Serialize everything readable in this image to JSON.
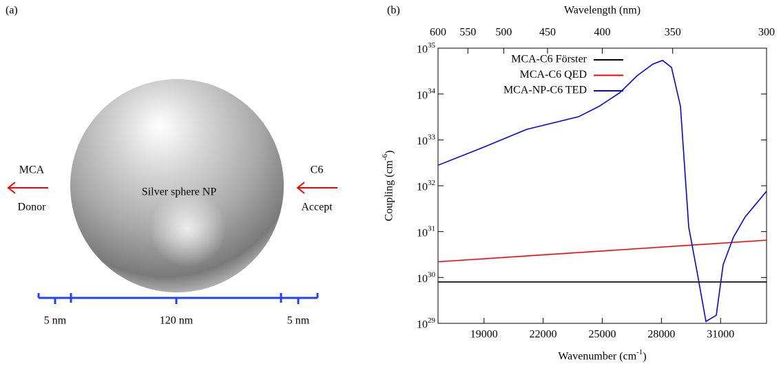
{
  "panel_a": {
    "label": "(a)",
    "donor_name": "MCA",
    "donor_role": "Donor",
    "acceptor_name": "C6",
    "acceptor_role": "Accept",
    "sphere_label": "Silver sphere NP",
    "gap_left": "5 nm",
    "diameter": "120 nm",
    "gap_right": "5 nm"
  },
  "chart_data": {
    "type": "line",
    "panel_label": "(b)",
    "xlabel": "Wavenumber (cm^{-1})",
    "ylabel": "Coupling (cm^{-6})",
    "x2label": "Wavelength (nm)",
    "xlim": [
      16667,
      33333
    ],
    "xticks": [
      19000,
      22000,
      25000,
      28000,
      31000
    ],
    "x2ticks": [
      {
        "value": 16667,
        "label": "600"
      },
      {
        "value": 18182,
        "label": "550"
      },
      {
        "value": 20000,
        "label": "500"
      },
      {
        "value": 22222,
        "label": "450"
      },
      {
        "value": 25000,
        "label": "400"
      },
      {
        "value": 28571,
        "label": "350"
      },
      {
        "value": 33333,
        "label": "300"
      }
    ],
    "ylim": [
      1e+29,
      1e+35
    ],
    "log_y": true,
    "yticks": [
      {
        "value": 1e+29,
        "label": "10^{29}"
      },
      {
        "value": 1e+30,
        "label": "10^{30}"
      },
      {
        "value": 1e+31,
        "label": "10^{31}"
      },
      {
        "value": 1e+32,
        "label": "10^{32}"
      },
      {
        "value": 1e+33,
        "label": "10^{33}"
      },
      {
        "value": 1e+34,
        "label": "10^{34}"
      },
      {
        "value": 1e+35,
        "label": "10^{35}"
      }
    ],
    "legend": "top-left",
    "series": [
      {
        "name": "MCA-C6 Förster",
        "color": "#000000",
        "x": [
          16667,
          33333
        ],
        "values": [
          8e+29,
          8e+29
        ]
      },
      {
        "name": "MCA-C6 QED",
        "color": "#ff0000",
        "x": [
          16667,
          33333
        ],
        "values": [
          2.2e+30,
          6.5e+30
        ]
      },
      {
        "name": "MCA-NP-C6 TED",
        "color": "#0000ff",
        "x": [
          16667,
          18903,
          21174,
          23795,
          24843,
          25892,
          26765,
          27569,
          28058,
          28512,
          28966,
          29386,
          29805,
          30259,
          30783,
          31132,
          31656,
          32250,
          33333
        ],
        "values": [
          2.8e+32,
          6.7e+32,
          1.7e+33,
          3.2e+33,
          5.4e+33,
          1.07e+34,
          2.5e+34,
          4.5e+34,
          5.4e+34,
          3.8e+34,
          5.4e+33,
          1.26e+31,
          1.35e+30,
          1.1e+29,
          1.5e+29,
          1.9e+30,
          7.6e+30,
          2.1e+31,
          7.6e+31
        ]
      }
    ]
  }
}
